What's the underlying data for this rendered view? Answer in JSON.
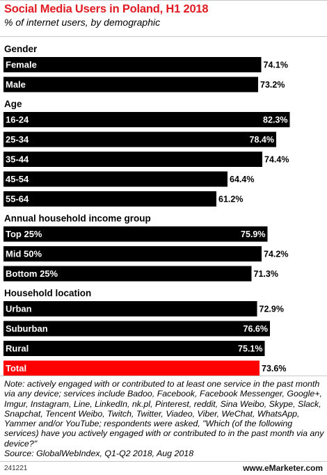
{
  "header": {
    "title": "Social Media Users in Poland, H1 2018",
    "subtitle": "% of internet users, by demographic"
  },
  "chart_data": {
    "type": "bar",
    "orientation": "horizontal",
    "title": "Social Media Users in Poland, H1 2018",
    "subtitle": "% of internet users, by demographic",
    "xlim": [
      0,
      85
    ],
    "grid": false,
    "legend": "none",
    "colors": {
      "bar": "#000000",
      "highlight": "#ff0000",
      "label_on_bar": "#ffffff",
      "label_off_bar": "#000000"
    },
    "groups": [
      {
        "name": "Gender",
        "items": [
          {
            "label": "Female",
            "value": 74.1,
            "display": "74.1%"
          },
          {
            "label": "Male",
            "value": 73.2,
            "display": "73.2%"
          }
        ]
      },
      {
        "name": "Age",
        "items": [
          {
            "label": "16-24",
            "value": 82.3,
            "display": "82.3%"
          },
          {
            "label": "25-34",
            "value": 78.4,
            "display": "78.4%"
          },
          {
            "label": "35-44",
            "value": 74.4,
            "display": "74.4%"
          },
          {
            "label": "45-54",
            "value": 64.4,
            "display": "64.4%"
          },
          {
            "label": "55-64",
            "value": 61.2,
            "display": "61.2%"
          }
        ]
      },
      {
        "name": "Annual household income group",
        "items": [
          {
            "label": "Top 25%",
            "value": 75.9,
            "display": "75.9%"
          },
          {
            "label": "Mid 50%",
            "value": 74.2,
            "display": "74.2%"
          },
          {
            "label": "Bottom 25%",
            "value": 71.3,
            "display": "71.3%"
          }
        ]
      },
      {
        "name": "Household location",
        "items": [
          {
            "label": "Urban",
            "value": 72.9,
            "display": "72.9%"
          },
          {
            "label": "Suburban",
            "value": 76.6,
            "display": "76.6%"
          },
          {
            "label": "Rural",
            "value": 75.1,
            "display": "75.1%"
          },
          {
            "label": "Total",
            "value": 73.6,
            "display": "73.6%",
            "highlight": true
          }
        ]
      }
    ]
  },
  "footer": {
    "note": "Note: actively engaged with or contributed to at least one service in the past month via any device; services include Badoo, Facebook, Facebook Messenger, Google+, Imgur, Instagram, Line, LinkedIn, nk.pl, Pinterest, reddit, Sina Weibo, Skype, Slack, Snapchat, Tencent Weibo, Twitch, Twitter, Viadeo, Viber, WeChat, WhatsApp, Yammer and/or YouTube; respondents were asked, \"Which (of the following services) have you actively engaged with or contributed to in the past month via any device?\"",
    "source": "Source: GlobalWebIndex, Q1-Q2 2018, Aug 2018",
    "chart_id": "241221",
    "brand": "www.eMarketer.com"
  }
}
